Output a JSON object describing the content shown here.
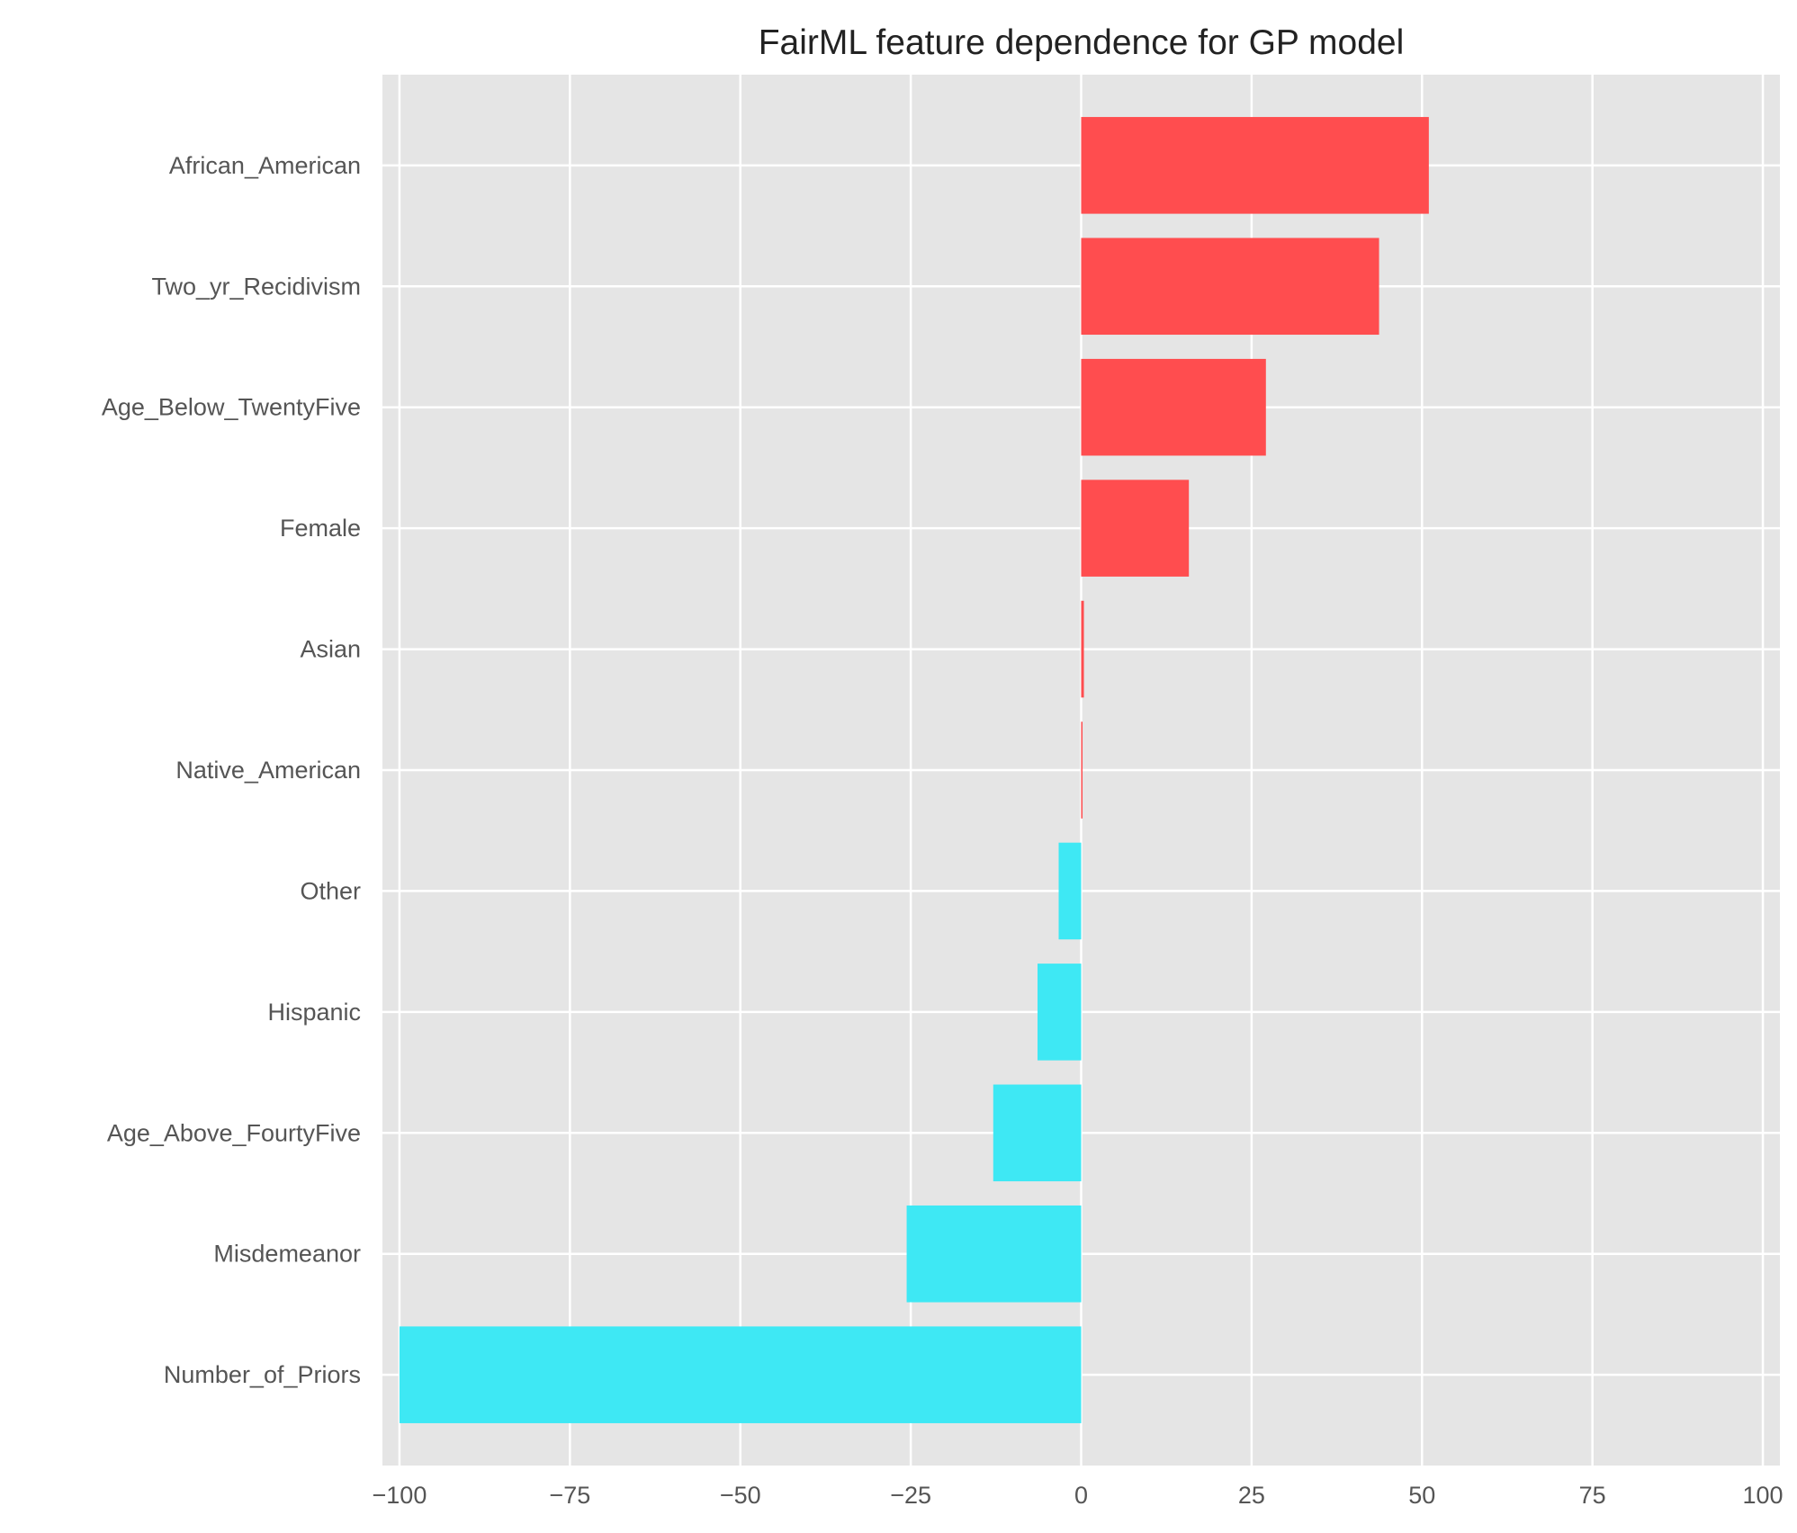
{
  "chart_data": {
    "type": "bar",
    "orientation": "horizontal",
    "title": "FairML feature dependence for GP model",
    "xlabel": "",
    "ylabel": "",
    "xlim": [
      -102.5,
      102.5
    ],
    "xticks": [
      -100,
      -75,
      -50,
      -25,
      0,
      25,
      50,
      75,
      100
    ],
    "xtick_labels": [
      "−100",
      "−75",
      "−50",
      "−25",
      "0",
      "25",
      "50",
      "75",
      "100"
    ],
    "grid": true,
    "categories": [
      "African_American",
      "Two_yr_Recidivism",
      "Age_Below_TwentyFive",
      "Female",
      "Asian",
      "Native_American",
      "Other",
      "Hispanic",
      "Age_Above_FourtyFive",
      "Misdemeanor",
      "Number_of_Priors"
    ],
    "values": [
      51.0,
      43.7,
      27.1,
      15.8,
      0.4,
      0.2,
      -3.3,
      -6.4,
      -12.9,
      -25.6,
      -100.0
    ],
    "colors": {
      "positive": "#ff4d4f",
      "negative": "#3ee8f4",
      "background": "#e5e5e5"
    }
  }
}
